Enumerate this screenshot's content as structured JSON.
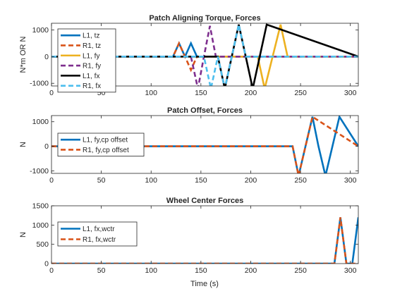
{
  "figure": {
    "xlabel": "Time (s)"
  },
  "chart_data": [
    {
      "type": "line",
      "title": "Patch Aligning Torque, Forces",
      "ylabel": "N*m OR N",
      "xlabel": "",
      "xlim": [
        0,
        308
      ],
      "ylim": [
        -1100,
        1250
      ],
      "xticks": [
        0,
        50,
        100,
        150,
        200,
        250,
        300
      ],
      "yticks": [
        -1000,
        0,
        1000
      ],
      "ytick_labels": [
        "-1000",
        "0",
        "1000"
      ],
      "legend": {
        "position": "left"
      },
      "series": [
        {
          "name": "L1, tz",
          "color": "#0072BD",
          "dash": "solid",
          "x": [
            0,
            122,
            128,
            134,
            140,
            146,
            308
          ],
          "y": [
            0,
            0,
            500,
            0,
            500,
            0,
            0
          ]
        },
        {
          "name": "R1, tz",
          "color": "#D95319",
          "dash": "dashed",
          "x": [
            0,
            122,
            128,
            134,
            140,
            146,
            308
          ],
          "y": [
            0,
            0,
            500,
            0,
            -500,
            0,
            0
          ]
        },
        {
          "name": "L1, fy",
          "color": "#EDB120",
          "dash": "solid",
          "x": [
            0,
            207,
            214,
            222,
            230,
            237,
            308
          ],
          "y": [
            0,
            0,
            -1200,
            0,
            1200,
            0,
            0
          ]
        },
        {
          "name": "R1, fy",
          "color": "#7E2F8E",
          "dash": "dashed",
          "x": [
            0,
            140,
            147,
            153,
            159,
            165,
            308
          ],
          "y": [
            0,
            0,
            -1200,
            0,
            1150,
            0,
            0
          ]
        },
        {
          "name": "L1, fx",
          "color": "#000000",
          "dash": "solid",
          "x": [
            0,
            167,
            174,
            181,
            188,
            195,
            202,
            209,
            216,
            308
          ],
          "y": [
            0,
            0,
            -1200,
            0,
            1200,
            0,
            -1200,
            0,
            1200,
            0
          ]
        },
        {
          "name": "R1, fx",
          "color": "#4DBEEE",
          "dash": "dashed",
          "x": [
            0,
            153,
            160,
            167,
            174,
            181,
            188,
            195,
            308
          ],
          "y": [
            0,
            0,
            -1200,
            0,
            -1200,
            0,
            1200,
            0,
            0
          ]
        }
      ]
    },
    {
      "type": "line",
      "title": "Patch Offset, Forces",
      "ylabel": "N",
      "xlabel": "",
      "xlim": [
        0,
        308
      ],
      "ylim": [
        -1100,
        1250
      ],
      "xticks": [
        0,
        50,
        100,
        150,
        200,
        250,
        300
      ],
      "yticks": [
        -1000,
        0,
        1000
      ],
      "ytick_labels": [
        "-1000",
        "0",
        "1000"
      ],
      "legend": {
        "position": "left"
      },
      "series": [
        {
          "name": "L1, fy,cp offset",
          "color": "#0072BD",
          "dash": "solid",
          "x": [
            0,
            242,
            248,
            255,
            262,
            268,
            275,
            282,
            289,
            308
          ],
          "y": [
            0,
            0,
            -1200,
            0,
            1200,
            0,
            -1200,
            0,
            1200,
            0
          ]
        },
        {
          "name": "R1, fy,cp offset",
          "color": "#D95319",
          "dash": "dashed",
          "x": [
            0,
            242,
            248,
            255,
            262,
            308
          ],
          "y": [
            0,
            0,
            -1200,
            0,
            1200,
            0
          ]
        }
      ]
    },
    {
      "type": "line",
      "title": "Wheel Center Forces",
      "ylabel": "N",
      "xlabel": "Time (s)",
      "xlim": [
        0,
        308
      ],
      "ylim": [
        0,
        1500
      ],
      "xticks": [
        0,
        50,
        100,
        150,
        200,
        250,
        300
      ],
      "yticks": [
        0,
        500,
        1000,
        1500
      ],
      "ytick_labels": [
        "0",
        "500",
        "1000",
        "1500"
      ],
      "legend": {
        "position": "left"
      },
      "series": [
        {
          "name": "L1, fx,wctr",
          "color": "#0072BD",
          "dash": "solid",
          "x": [
            0,
            284,
            290,
            296,
            302,
            308,
            314
          ],
          "y": [
            0,
            0,
            1200,
            0,
            0,
            1200,
            0
          ]
        },
        {
          "name": "R1, fx,wctr",
          "color": "#D95319",
          "dash": "dashed",
          "x": [
            0,
            284,
            290,
            296,
            308
          ],
          "y": [
            0,
            0,
            1200,
            0,
            0
          ]
        }
      ]
    }
  ]
}
